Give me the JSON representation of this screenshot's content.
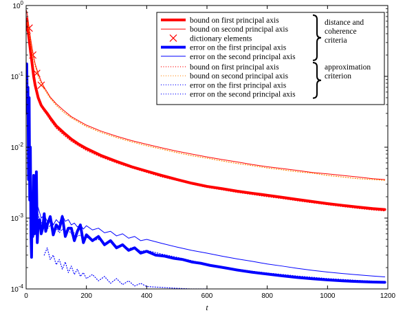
{
  "chart_data": {
    "type": "line",
    "title": "",
    "xlabel": "t",
    "ylabel": "",
    "xlim": [
      0,
      1200
    ],
    "ylim_log10": [
      -4,
      0
    ],
    "yscale": "log",
    "grid": false,
    "legend_placement": "top-right",
    "x_ticks": [
      "0",
      "200",
      "400",
      "600",
      "800",
      "1000",
      "1200"
    ],
    "y_ticks": [
      {
        "base": "10",
        "exp": "-4",
        "value": 0.0001
      },
      {
        "base": "10",
        "exp": "-3",
        "value": 0.001
      },
      {
        "base": "10",
        "exp": "-2",
        "value": 0.01
      },
      {
        "base": "10",
        "exp": "-1",
        "value": 0.1
      },
      {
        "base": "10",
        "exp": "0",
        "value": 1
      }
    ],
    "legend_groups": [
      {
        "label_lines": [
          "distance and",
          "coherence",
          "criteria"
        ]
      },
      {
        "label_lines": [
          "approximation",
          "criterion"
        ]
      }
    ],
    "series": [
      {
        "name": "bound on first principal axis",
        "color": "#ff0000",
        "style": "solid-thick",
        "x": [
          1,
          5,
          10,
          15,
          20,
          25,
          30,
          40,
          50,
          60,
          70,
          80,
          100,
          125,
          150,
          175,
          200,
          250,
          300,
          350,
          400,
          450,
          500,
          550,
          600,
          650,
          700,
          750,
          800,
          850,
          900,
          950,
          1000,
          1050,
          1100,
          1150,
          1190
        ],
        "y": [
          0.65,
          0.5,
          0.33,
          0.22,
          0.15,
          0.1,
          0.075,
          0.05,
          0.039,
          0.034,
          0.03,
          0.026,
          0.02,
          0.016,
          0.013,
          0.011,
          0.0096,
          0.0076,
          0.0063,
          0.0053,
          0.0046,
          0.004,
          0.0035,
          0.0031,
          0.0028,
          0.0026,
          0.0024,
          0.00224,
          0.0021,
          0.00196,
          0.00183,
          0.00171,
          0.0016,
          0.00151,
          0.00143,
          0.00136,
          0.00132
        ]
      },
      {
        "name": "bound on second principal axis",
        "color": "#ff0000",
        "style": "solid-thin",
        "x": [
          1,
          5,
          10,
          15,
          20,
          25,
          30,
          40,
          50,
          60,
          70,
          80,
          100,
          125,
          150,
          175,
          200,
          250,
          300,
          350,
          400,
          450,
          500,
          550,
          600,
          650,
          700,
          750,
          800,
          850,
          900,
          950,
          1000,
          1050,
          1100,
          1150,
          1190
        ],
        "y": [
          0.85,
          0.7,
          0.48,
          0.34,
          0.25,
          0.19,
          0.15,
          0.11,
          0.085,
          0.07,
          0.06,
          0.051,
          0.041,
          0.033,
          0.027,
          0.0235,
          0.0205,
          0.0168,
          0.0143,
          0.0124,
          0.011,
          0.0098,
          0.0088,
          0.008,
          0.0073,
          0.0067,
          0.0062,
          0.0057,
          0.0053,
          0.005,
          0.0047,
          0.0044,
          0.0042,
          0.004,
          0.0038,
          0.0036,
          0.0035
        ]
      },
      {
        "name": "dictionary elements",
        "color": "#ff0000",
        "style": "x-marker",
        "x": [
          3,
          10,
          22,
          35,
          50
        ],
        "y": [
          0.45,
          0.48,
          0.2,
          0.11,
          0.075
        ]
      },
      {
        "name": "error on the first principal axis",
        "color": "#0000ff",
        "style": "solid-thick",
        "x": [
          2,
          4,
          6,
          8,
          10,
          12,
          14,
          16,
          18,
          20,
          22,
          25,
          28,
          31,
          34,
          37,
          40,
          45,
          50,
          55,
          60,
          65,
          70,
          80,
          90,
          100,
          110,
          120,
          130,
          140,
          150,
          160,
          170,
          180,
          190,
          200,
          220,
          240,
          260,
          280,
          300,
          320,
          340,
          360,
          380,
          400,
          430,
          460,
          490,
          520,
          550,
          580,
          610,
          640,
          670,
          700,
          750,
          800,
          850,
          900,
          950,
          1000,
          1050,
          1100,
          1150,
          1190
        ],
        "y": [
          0.15,
          0.03,
          0.07,
          0.0035,
          0.05,
          0.0018,
          0.01,
          0.0006,
          0.00028,
          0.0022,
          0.00055,
          0.004,
          0.0006,
          0.0016,
          0.0045,
          0.00045,
          0.00085,
          0.00095,
          0.0006,
          0.00072,
          0.00115,
          0.00065,
          0.0008,
          0.00105,
          0.00058,
          0.0008,
          0.0007,
          0.00105,
          0.00055,
          0.00072,
          0.00072,
          0.00048,
          0.00065,
          0.0008,
          0.00045,
          0.00058,
          0.00048,
          0.00055,
          0.00042,
          0.00048,
          0.00038,
          0.00042,
          0.00035,
          0.00038,
          0.00032,
          0.00034,
          0.0003,
          0.00029,
          0.00027,
          0.00026,
          0.00024,
          0.00023,
          0.000215,
          0.000205,
          0.000195,
          0.000185,
          0.000172,
          0.000162,
          0.000153,
          0.000145,
          0.000139,
          0.000134,
          0.00013,
          0.000127,
          0.000125,
          0.000124
        ]
      },
      {
        "name": "error on the second principal axis",
        "color": "#0000ff",
        "style": "solid-thin",
        "x": [
          20,
          30,
          40,
          50,
          60,
          70,
          80,
          90,
          100,
          110,
          120,
          130,
          140,
          150,
          160,
          170,
          180,
          190,
          200,
          220,
          240,
          260,
          280,
          300,
          320,
          340,
          360,
          380,
          400,
          450,
          500,
          550,
          600,
          650,
          700,
          750,
          800,
          850,
          900,
          950,
          1000,
          1050,
          1100,
          1150,
          1190
        ],
        "y": [
          0.0015,
          0.0018,
          0.0014,
          0.001,
          0.0011,
          0.0009,
          0.00105,
          0.0008,
          0.00095,
          0.00085,
          0.0011,
          0.0009,
          0.00095,
          0.0008,
          0.00085,
          0.00075,
          0.0008,
          0.0007,
          0.00078,
          0.00068,
          0.00072,
          0.00062,
          0.00065,
          0.00056,
          0.0006,
          0.00052,
          0.00055,
          0.00048,
          0.0005,
          0.00044,
          0.00039,
          0.00035,
          0.00032,
          0.00029,
          0.000265,
          0.000245,
          0.000225,
          0.00021,
          0.000195,
          0.000183,
          0.000173,
          0.000165,
          0.000158,
          0.000152,
          0.000148
        ]
      },
      {
        "name": "bound on first principal axis",
        "color": "#ff0000",
        "style": "dotted",
        "x": [
          2,
          5,
          10,
          15,
          20,
          25,
          30,
          40,
          50,
          60,
          70,
          80,
          100,
          125,
          150,
          175,
          200,
          250,
          300,
          350,
          400,
          450,
          500,
          550,
          600,
          650,
          700,
          750,
          800,
          850,
          900,
          950,
          1000,
          1050,
          1100,
          1150,
          1190
        ],
        "y": [
          0.55,
          0.45,
          0.3,
          0.2,
          0.14,
          0.095,
          0.072,
          0.048,
          0.037,
          0.032,
          0.028,
          0.024,
          0.0185,
          0.0148,
          0.0121,
          0.0104,
          0.009,
          0.0072,
          0.006,
          0.0051,
          0.0044,
          0.0038,
          0.0034,
          0.003,
          0.0027,
          0.0025,
          0.0023,
          0.00215,
          0.002,
          0.00188,
          0.00175,
          0.00164,
          0.00154,
          0.00145,
          0.00137,
          0.0013,
          0.00126
        ]
      },
      {
        "name": "bound on second principal axis",
        "color": "#ff8000",
        "style": "dotted",
        "x": [
          5,
          10,
          20,
          30,
          40,
          50,
          60,
          70,
          80,
          100,
          125,
          150,
          175,
          200,
          250,
          300,
          350,
          400,
          450,
          500,
          550,
          600,
          650,
          700,
          750,
          800,
          850,
          900,
          950,
          1000,
          1050,
          1100,
          1150,
          1190
        ],
        "y": [
          0.6,
          0.42,
          0.22,
          0.14,
          0.1,
          0.08,
          0.066,
          0.057,
          0.049,
          0.039,
          0.031,
          0.026,
          0.0225,
          0.0196,
          0.0161,
          0.0137,
          0.0119,
          0.0105,
          0.0094,
          0.0084,
          0.0076,
          0.007,
          0.0064,
          0.0059,
          0.0055,
          0.0051,
          0.0048,
          0.0045,
          0.0043,
          0.004,
          0.0038,
          0.0036,
          0.0035,
          0.0034
        ]
      },
      {
        "name": "error on the first principal axis",
        "color": "#0000ff",
        "style": "dotted",
        "x": [
          60,
          70,
          80,
          90,
          100,
          110,
          120,
          130,
          140,
          150,
          160,
          170,
          180,
          190,
          200,
          220,
          240,
          260,
          280,
          300,
          320,
          340,
          360,
          380,
          400,
          450,
          500,
          550,
          600
        ],
        "y": [
          0.0003,
          0.00038,
          0.00026,
          0.0003,
          0.00022,
          0.00026,
          0.00019,
          0.00024,
          0.00017,
          0.00021,
          0.00016,
          0.00019,
          0.00015,
          0.00017,
          0.00014,
          0.00016,
          0.00013,
          0.00015,
          0.00012,
          0.00014,
          0.000115,
          0.00013,
          0.00011,
          0.00012,
          0.000108,
          0.000105,
          0.000102,
          0.0001,
          0.0001
        ]
      },
      {
        "name": "error on the second principal axis",
        "color": "#0000ff",
        "style": "dotted",
        "x": [
          20,
          30,
          40,
          50,
          60,
          70,
          80,
          90,
          100,
          110,
          120,
          130,
          140,
          150,
          160,
          170,
          180,
          190,
          200,
          220,
          240,
          260,
          280,
          300,
          320,
          340,
          360,
          380,
          400,
          450,
          500,
          550,
          600,
          650,
          700,
          750,
          800,
          850,
          900,
          950,
          1000,
          1050,
          1100,
          1150,
          1190
        ],
        "y": [
          0.0012,
          0.0015,
          0.0011,
          0.00085,
          0.0009,
          0.0007,
          0.0008,
          0.00065,
          0.00072,
          0.00062,
          0.0007,
          0.00064,
          0.00068,
          0.0006,
          0.00062,
          0.00055,
          0.00058,
          0.0005,
          0.00054,
          0.00048,
          0.0005,
          0.00044,
          0.00046,
          0.0004,
          0.00042,
          0.00037,
          0.00039,
          0.00034,
          0.00035,
          0.00031,
          0.00028,
          0.00025,
          0.000225,
          0.000205,
          0.00019,
          0.000178,
          0.000168,
          0.00016,
          0.000152,
          0.000146,
          0.00014,
          0.000136,
          0.000132,
          0.000129,
          0.000127
        ]
      }
    ]
  }
}
